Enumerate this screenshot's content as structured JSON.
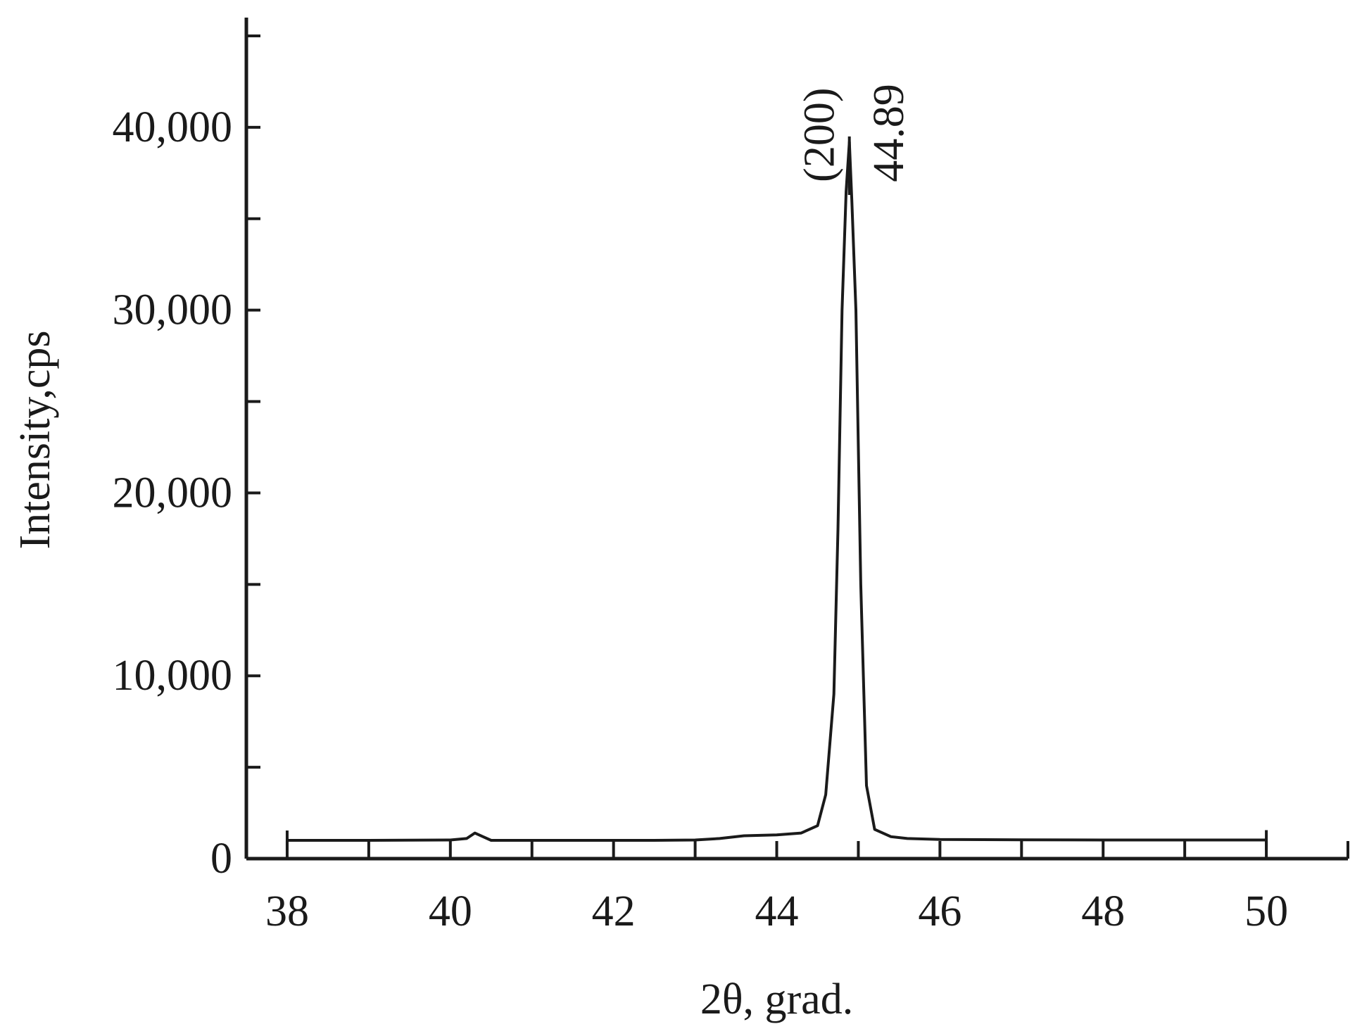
{
  "chart_data": {
    "type": "line",
    "title": "",
    "xlabel": "2θ, grad.",
    "ylabel": "Intensity,cps",
    "xlim": [
      37.5,
      51
    ],
    "ylim": [
      0,
      46000
    ],
    "x_ticks": [
      38,
      40,
      42,
      44,
      46,
      48,
      50
    ],
    "x_tick_labels": [
      "38",
      "40",
      "42",
      "44",
      "46",
      "48",
      "50"
    ],
    "y_ticks": [
      0,
      10000,
      20000,
      30000,
      40000
    ],
    "y_tick_labels": [
      "0",
      "10,000",
      "20,000",
      "30,000",
      "40,000"
    ],
    "grid": false,
    "series": [
      {
        "color": "#1a1a1a",
        "points": [
          [
            38.0,
            1000
          ],
          [
            39.0,
            1000
          ],
          [
            40.0,
            1020
          ],
          [
            40.2,
            1100
          ],
          [
            40.3,
            1400
          ],
          [
            40.4,
            1200
          ],
          [
            40.5,
            1000
          ],
          [
            41.0,
            1000
          ],
          [
            42.0,
            1000
          ],
          [
            42.5,
            1000
          ],
          [
            43.0,
            1020
          ],
          [
            43.3,
            1100
          ],
          [
            43.6,
            1250
          ],
          [
            44.0,
            1300
          ],
          [
            44.3,
            1400
          ],
          [
            44.5,
            1800
          ],
          [
            44.6,
            3500
          ],
          [
            44.7,
            9000
          ],
          [
            44.75,
            18000
          ],
          [
            44.8,
            30000
          ],
          [
            44.85,
            36500
          ],
          [
            44.89,
            39200
          ],
          [
            44.92,
            36000
          ],
          [
            44.97,
            30000
          ],
          [
            45.03,
            15000
          ],
          [
            45.1,
            4000
          ],
          [
            45.2,
            1600
          ],
          [
            45.4,
            1200
          ],
          [
            45.6,
            1100
          ],
          [
            46.0,
            1050
          ],
          [
            47.0,
            1030
          ],
          [
            48.0,
            1020
          ],
          [
            49.0,
            1020
          ],
          [
            50.0,
            1020
          ]
        ]
      }
    ],
    "annotations": [
      {
        "text": "(200)",
        "x": 44.7,
        "y": 37000,
        "rotation": -90
      },
      {
        "text": "44.89",
        "x": 45.55,
        "y": 37000,
        "rotation": -90
      }
    ],
    "peak_marker": {
      "x": 44.89,
      "y": 39500
    }
  }
}
